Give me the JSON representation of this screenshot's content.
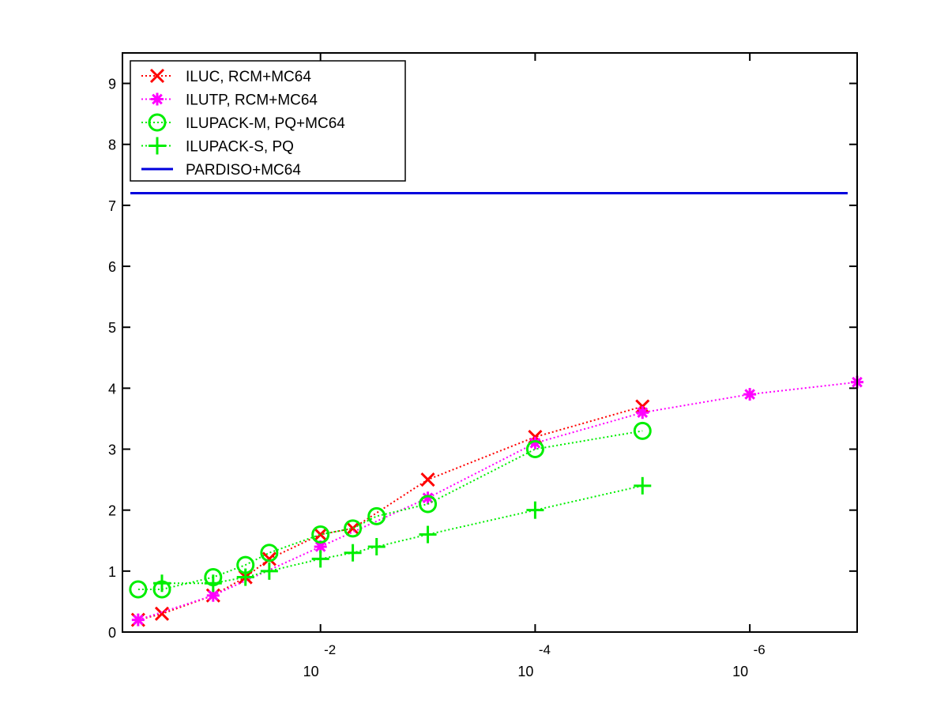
{
  "chart_data": {
    "type": "line",
    "title": "",
    "xlabel": "",
    "ylabel": "",
    "x_scale": "log",
    "x_reversed": true,
    "xlim": [
      0.7,
      1e-07
    ],
    "ylim": [
      0,
      9.5
    ],
    "x_ticks": [
      {
        "value": 0.01,
        "base": "10",
        "exponent": "-2"
      },
      {
        "value": 0.0001,
        "base": "10",
        "exponent": "-4"
      },
      {
        "value": 1e-06,
        "base": "10",
        "exponent": "-6"
      }
    ],
    "y_ticks": [
      "0",
      "1",
      "2",
      "3",
      "4",
      "5",
      "6",
      "7",
      "8",
      "9"
    ],
    "grid": false,
    "legend_position": "top-left",
    "series": [
      {
        "name": "ILUC, RCM+MC64",
        "color": "#ff0000",
        "marker": "x-mark",
        "line": "dotted",
        "points": [
          [
            0.5,
            0.2
          ],
          [
            0.3,
            0.3
          ],
          [
            0.1,
            0.6
          ],
          [
            0.05,
            0.9
          ],
          [
            0.03,
            1.2
          ],
          [
            0.01,
            1.6
          ],
          [
            0.005,
            1.7
          ],
          [
            0.001,
            2.5
          ],
          [
            0.0001,
            3.2
          ],
          [
            1e-05,
            3.7
          ]
        ]
      },
      {
        "name": "ILUTP, RCM+MC64",
        "color": "#ff00ff",
        "marker": "asterisk",
        "line": "dotted",
        "points": [
          [
            0.5,
            0.2
          ],
          [
            0.1,
            0.6
          ],
          [
            0.01,
            1.4
          ],
          [
            0.001,
            2.2
          ],
          [
            0.0001,
            3.1
          ],
          [
            1e-05,
            3.6
          ],
          [
            1e-06,
            3.9
          ],
          [
            1e-07,
            4.1
          ]
        ]
      },
      {
        "name": "ILUPACK-M, PQ+MC64",
        "color": "#00ee00",
        "marker": "circle",
        "line": "dotted",
        "points": [
          [
            0.5,
            0.7
          ],
          [
            0.3,
            0.7
          ],
          [
            0.1,
            0.9
          ],
          [
            0.05,
            1.1
          ],
          [
            0.03,
            1.3
          ],
          [
            0.01,
            1.6
          ],
          [
            0.005,
            1.7
          ],
          [
            0.003,
            1.9
          ],
          [
            0.001,
            2.1
          ],
          [
            0.0001,
            3.0
          ],
          [
            1e-05,
            3.3
          ]
        ]
      },
      {
        "name": "ILUPACK-S, PQ",
        "color": "#00ee00",
        "marker": "plus",
        "line": "dotted",
        "points": [
          [
            0.3,
            0.8
          ],
          [
            0.1,
            0.8
          ],
          [
            0.05,
            0.9
          ],
          [
            0.03,
            1.0
          ],
          [
            0.01,
            1.2
          ],
          [
            0.005,
            1.3
          ],
          [
            0.003,
            1.4
          ],
          [
            0.001,
            1.6
          ],
          [
            0.0001,
            2.0
          ],
          [
            1e-05,
            2.4
          ]
        ]
      },
      {
        "name": "PARDISO+MC64",
        "color": "#0000dd",
        "marker": "none",
        "line": "solid",
        "constant": 7.2
      }
    ]
  }
}
